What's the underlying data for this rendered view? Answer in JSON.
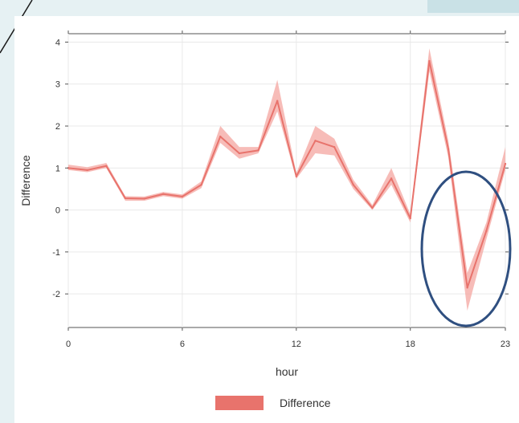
{
  "chart_data": {
    "type": "line",
    "xlabel": "hour",
    "ylabel": "Difference",
    "xlim": [
      0,
      23
    ],
    "ylim": [
      -2.8,
      4.2
    ],
    "x_ticks": [
      0,
      6,
      12,
      18,
      23
    ],
    "y_ticks": [
      -2,
      -1,
      0,
      1,
      2,
      3,
      4
    ],
    "grid": true,
    "legend": {
      "position": "bottom",
      "entries": [
        "Difference"
      ]
    },
    "series": [
      {
        "name": "Difference",
        "color": "#e8736c",
        "band_color": "#f4a5a0",
        "x": [
          0,
          1,
          2,
          3,
          4,
          5,
          6,
          7,
          8,
          9,
          10,
          11,
          12,
          13,
          14,
          15,
          16,
          17,
          18,
          19,
          20,
          21,
          22,
          23
        ],
        "values": [
          1.0,
          0.95,
          1.05,
          0.28,
          0.27,
          0.38,
          0.32,
          0.6,
          1.75,
          1.35,
          1.42,
          2.6,
          0.8,
          1.65,
          1.5,
          0.6,
          0.05,
          0.75,
          -0.2,
          3.55,
          1.45,
          -1.85,
          -0.5,
          1.1
        ],
        "lower": [
          0.95,
          0.9,
          1.0,
          0.22,
          0.22,
          0.33,
          0.27,
          0.52,
          1.6,
          1.22,
          1.35,
          2.35,
          0.74,
          1.35,
          1.3,
          0.5,
          0.0,
          0.6,
          -0.3,
          3.3,
          1.25,
          -2.4,
          -0.7,
          0.95
        ],
        "upper": [
          1.08,
          1.02,
          1.12,
          0.33,
          0.32,
          0.43,
          0.37,
          0.68,
          2.0,
          1.5,
          1.5,
          3.1,
          0.88,
          2.0,
          1.7,
          0.72,
          0.12,
          1.0,
          -0.1,
          3.85,
          1.65,
          -1.5,
          -0.3,
          1.5
        ]
      }
    ]
  },
  "annotation": {
    "shape": "ellipse",
    "color": "#2f4f80"
  }
}
